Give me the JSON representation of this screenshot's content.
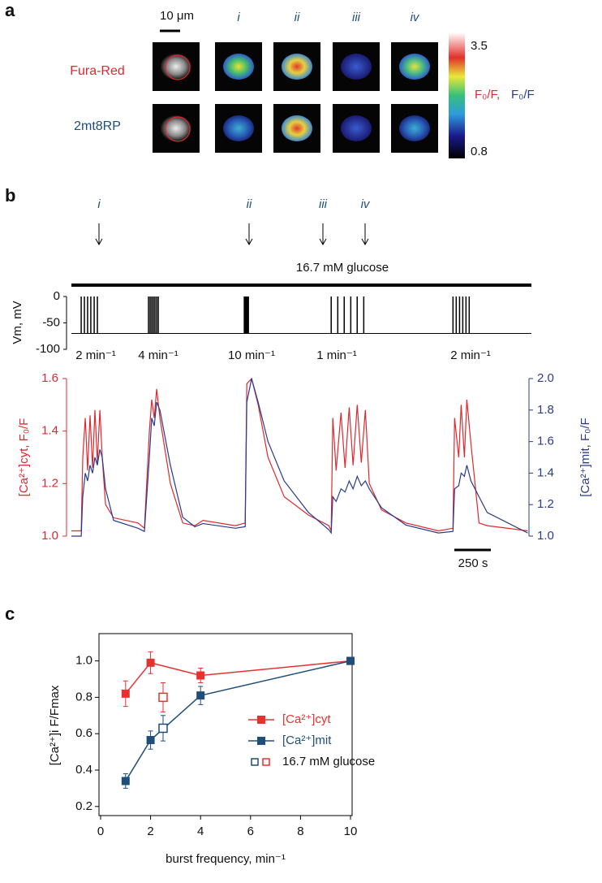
{
  "panel_a": {
    "label": "a",
    "scale_bar": "10 μm",
    "columns": [
      "i",
      "ii",
      "iii",
      "iv"
    ],
    "rows": [
      "Fura-Red",
      "2mt8RP"
    ],
    "colorbar": {
      "max": "3.5",
      "min": "0.8",
      "label_cyt": "F₀/F,",
      "label_mit": "F₀/F"
    }
  },
  "panel_b": {
    "label": "b",
    "events": [
      "i",
      "ii",
      "iii",
      "iv"
    ],
    "glucose": "16.7 mM glucose",
    "vm": {
      "ylabel": "Vm, mV",
      "ylim": [
        -100,
        0
      ],
      "yticks": [
        0,
        -50,
        -100
      ],
      "rest": -70,
      "peak": 0,
      "spikes": [
        67,
        89,
        111,
        133,
        156,
        178,
        528,
        539,
        550,
        561,
        572,
        584,
        595,
        1184,
        1190,
        1195,
        1201,
        1206,
        1212,
        1779,
        1824,
        1868,
        1913,
        1957,
        2002,
        2613,
        2635,
        2658,
        2680,
        2702,
        2724
      ]
    },
    "rates": [
      "2 min⁻¹",
      "4 min⁻¹",
      "10 min⁻¹",
      "1 min⁻¹",
      "2 min⁻¹"
    ]
  },
  "panel_c": {
    "label": "c"
  },
  "chart_data": [
    {
      "type": "line",
      "scale_bar": "250 s",
      "x": [
        0,
        67,
        78,
        95,
        111,
        128,
        145,
        161,
        178,
        195,
        211,
        234,
        289,
        456,
        500,
        534,
        550,
        567,
        584,
        606,
        678,
        762,
        845,
        901,
        1123,
        1190,
        1201,
        1234,
        1279,
        1346,
        1457,
        1624,
        1763,
        1779,
        1790,
        1813,
        1846,
        1874,
        1902,
        1929,
        1957,
        1985,
        2013,
        2040,
        2124,
        2291,
        2513,
        2613,
        2624,
        2652,
        2669,
        2691,
        2708,
        2736,
        2764,
        2791,
        2847,
        3125
      ],
      "ylim": [
        1.0,
        1.6
      ],
      "yticks": [
        {
          "value": 1,
          "label": "1.0"
        },
        1.2,
        1.4,
        1.6
      ],
      "y2lim": [
        1.0,
        2.0
      ],
      "y2ticks": [
        {
          "value": 1,
          "label": "1.0"
        },
        1.2,
        1.4,
        1.6,
        1.8,
        {
          "value": 2,
          "label": "2.0"
        }
      ],
      "series": [
        {
          "name": "[Ca²⁺]cyt, F₀/F",
          "color": "#e0282e",
          "values": [
            1.02,
            1.02,
            1.3,
            1.45,
            1.25,
            1.46,
            1.26,
            1.48,
            1.28,
            1.48,
            1.3,
            1.12,
            1.07,
            1.05,
            1.03,
            1.4,
            1.52,
            1.45,
            1.56,
            1.45,
            1.2,
            1.05,
            1.04,
            1.06,
            1.04,
            1.05,
            1.58,
            1.6,
            1.5,
            1.3,
            1.15,
            1.08,
            1.04,
            1.02,
            1.45,
            1.25,
            1.47,
            1.26,
            1.49,
            1.27,
            1.5,
            1.28,
            1.48,
            1.2,
            1.1,
            1.05,
            1.02,
            1.03,
            1.45,
            1.3,
            1.5,
            1.3,
            1.52,
            1.35,
            1.2,
            1.05,
            1.04,
            1.02
          ]
        },
        {
          "name": "[Ca²⁺]mit, F₀/F",
          "color": "#2b3a8f",
          "axis": "y2",
          "values": [
            1.0,
            1.0,
            1.25,
            1.4,
            1.35,
            1.45,
            1.4,
            1.5,
            1.45,
            1.55,
            1.5,
            1.3,
            1.1,
            1.05,
            1.03,
            1.5,
            1.75,
            1.7,
            1.85,
            1.8,
            1.45,
            1.12,
            1.06,
            1.08,
            1.05,
            1.06,
            1.85,
            2.0,
            1.85,
            1.6,
            1.35,
            1.15,
            1.04,
            1.02,
            1.25,
            1.22,
            1.3,
            1.28,
            1.35,
            1.3,
            1.38,
            1.32,
            1.35,
            1.3,
            1.18,
            1.07,
            1.02,
            1.03,
            1.3,
            1.32,
            1.4,
            1.38,
            1.45,
            1.35,
            1.3,
            1.25,
            1.15,
            1.02
          ]
        }
      ]
    },
    {
      "type": "errorline",
      "xlabel": "burst frequency, min⁻¹",
      "ylabel": "[Ca²⁺]i F/Fmax",
      "xlim": [
        0,
        10
      ],
      "xticks": [
        0,
        2,
        4,
        6,
        8,
        10
      ],
      "ylim": [
        0.15,
        1.15
      ],
      "yticks": [
        0.2,
        0.4,
        0.6,
        0.8,
        {
          "value": 1,
          "label": "1.0"
        }
      ],
      "legend": "center right",
      "series": [
        {
          "name": "[Ca²⁺]cyt",
          "color": "#e8312f",
          "x": [
            1,
            2,
            4,
            10
          ],
          "values": [
            0.82,
            0.99,
            0.92,
            1.0
          ],
          "errors": [
            0.07,
            0.06,
            0.04,
            0
          ]
        },
        {
          "name": "[Ca²⁺]mit",
          "color": "#1f4e79",
          "x": [
            1,
            2,
            4,
            10
          ],
          "values": [
            0.34,
            0.565,
            0.81,
            1.0
          ],
          "errors": [
            0.04,
            0.05,
            0.05,
            0
          ]
        },
        {
          "name": "16.7 mM glucose",
          "colors": [
            "#1f4e79",
            "#e8312f"
          ],
          "open": true,
          "x": [
            2.5,
            2.5
          ],
          "values": [
            0.63,
            0.8
          ],
          "errors": [
            0.07,
            0.08
          ]
        }
      ]
    }
  ]
}
